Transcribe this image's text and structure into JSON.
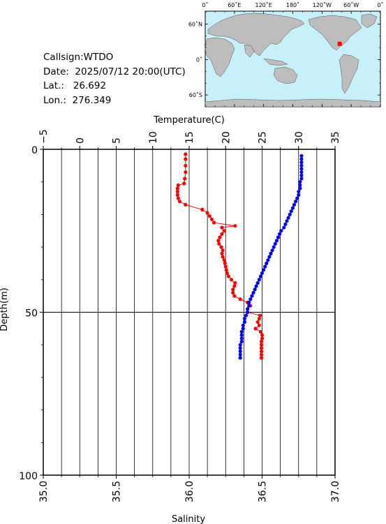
{
  "info": {
    "callsign_label": "Callsign:",
    "callsign": "WTDO",
    "date_label": "Date:",
    "date": "2025/07/12 20:00(UTC)",
    "lat_label": "Lat.:",
    "lat": "26.692",
    "lon_label": "Lon.:",
    "lon": "276.349"
  },
  "map": {
    "lon_labels": [
      "0˚",
      "60˚E",
      "120˚E",
      "180˚",
      "120˚W",
      "60˚W",
      "0˚"
    ],
    "lat_labels": [
      "60˚N",
      "0˚",
      "60˚S"
    ],
    "ocean_color": "#c8f0fa",
    "land_color": "#bdbdbd",
    "marker_color": "#ff0000",
    "marker_lon": 276.349,
    "marker_lat": 26.692
  },
  "chart_data": {
    "type": "line",
    "title": "",
    "top_axis": {
      "label": "Temperature(C)",
      "range": [
        -5,
        35
      ],
      "ticks": [
        "−5",
        "0",
        "5",
        "10",
        "15",
        "20",
        "25",
        "30",
        "35"
      ]
    },
    "bottom_axis": {
      "label": "Salinity",
      "range": [
        35.0,
        37.0
      ],
      "ticks": [
        "35.0",
        "35.5",
        "36.0",
        "36.5",
        "37.0"
      ]
    },
    "y_axis": {
      "label": "Depth(m)",
      "range": [
        0,
        100
      ],
      "inverted": true,
      "ticks": [
        "0",
        "50",
        "100"
      ]
    },
    "grid": true,
    "series": [
      {
        "axis": "top",
        "color": "#ff0000",
        "depth": [
          1.5,
          3,
          5,
          7,
          9,
          10.5,
          11,
          12,
          13,
          14,
          15,
          16,
          17,
          18.5,
          19.5,
          20.5,
          21.5,
          22.5,
          23.5,
          24,
          25,
          26,
          27,
          28,
          29,
          30,
          31,
          32,
          33,
          34,
          35,
          36,
          37,
          38,
          39,
          40,
          41,
          42,
          43,
          44,
          45,
          46,
          47,
          48,
          49,
          50,
          51,
          52,
          53,
          54,
          55,
          56,
          57,
          58,
          59,
          60,
          61,
          62,
          63,
          64
        ],
        "values": [
          14.5,
          14.5,
          14.5,
          14.5,
          14.4,
          14.3,
          13.5,
          13.4,
          13.4,
          13.4,
          13.5,
          13.7,
          14.5,
          16.8,
          17.5,
          17.8,
          18.1,
          18.4,
          21.3,
          19.5,
          19.8,
          19.5,
          19.2,
          19.0,
          19.1,
          19.4,
          19.6,
          19.5,
          19.6,
          19.8,
          19.9,
          20.0,
          20.1,
          20.2,
          20.4,
          20.8,
          21.3,
          21.2,
          21.0,
          21.0,
          21.2,
          22.0,
          23.0,
          23.4,
          23.0,
          23.0,
          24.7,
          24.6,
          24.4,
          24.6,
          24.1,
          24.8,
          25.0,
          25.0,
          24.9,
          24.9,
          24.9,
          24.9,
          24.9,
          24.9
        ]
      },
      {
        "axis": "bottom",
        "color": "#0000ff",
        "depth": [
          2,
          3,
          4,
          5,
          6,
          7,
          8,
          9,
          10,
          11,
          12,
          13,
          14,
          15,
          16,
          17,
          18,
          19,
          20,
          21,
          22,
          23,
          24,
          25,
          26,
          27,
          28,
          29,
          30,
          31,
          32,
          33,
          34,
          35,
          36,
          37,
          38,
          39,
          40,
          41,
          42,
          43,
          44,
          45,
          46,
          47,
          48,
          49,
          50,
          51,
          52,
          53,
          54,
          55,
          56,
          57,
          58,
          59,
          60,
          61,
          62,
          63,
          64
        ],
        "values": [
          36.77,
          36.77,
          36.77,
          36.77,
          36.77,
          36.77,
          36.77,
          36.77,
          36.76,
          36.76,
          36.76,
          36.75,
          36.75,
          36.74,
          36.73,
          36.72,
          36.71,
          36.7,
          36.69,
          36.68,
          36.67,
          36.66,
          36.65,
          36.63,
          36.62,
          36.61,
          36.6,
          36.59,
          36.58,
          36.57,
          36.56,
          36.55,
          36.54,
          36.53,
          36.52,
          36.51,
          36.5,
          36.49,
          36.48,
          36.47,
          36.46,
          36.45,
          36.44,
          36.43,
          36.42,
          36.41,
          36.41,
          36.4,
          36.4,
          36.39,
          36.38,
          36.38,
          36.37,
          36.37,
          36.36,
          36.36,
          36.36,
          36.36,
          36.35,
          36.35,
          36.35,
          36.35,
          36.35
        ]
      }
    ]
  }
}
